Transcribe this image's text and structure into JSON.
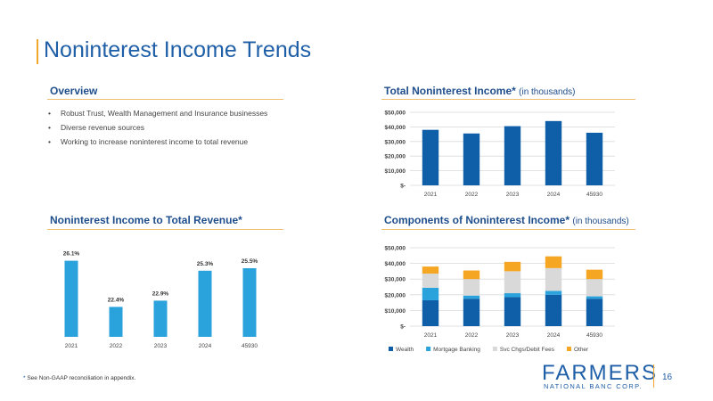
{
  "slide": {
    "title": "Noninterest Income Trends",
    "page_number": "16",
    "footnote_star": "*",
    "footnote": " See Non-GAAP reconciliation in appendix.",
    "logo_word": "FARMERS",
    "logo_sub": "NATIONAL BANC CORP."
  },
  "overview": {
    "heading": "Overview",
    "bullets": [
      "Robust Trust, Wealth Management and Insurance businesses",
      "Diverse revenue sources",
      "Working to increase noninterest income to total revenue"
    ]
  },
  "colors": {
    "blue": "#0e5fa8",
    "light_blue": "#2aa2dc",
    "gray": "#d9d9d9",
    "orange": "#f5a623",
    "accent": "#f0a830"
  },
  "chart_data": [
    {
      "id": "total",
      "type": "bar",
      "title": "Total Noninterest Income*",
      "subtitle": "(in thousands)",
      "categories": [
        "2021",
        "2022",
        "2023",
        "2024",
        "45930"
      ],
      "values": [
        38000,
        35500,
        40500,
        44000,
        36000
      ],
      "ylim": [
        0,
        50000
      ],
      "yticks": [
        0,
        10000,
        20000,
        30000,
        40000,
        50000
      ],
      "ytick_labels": [
        "$-",
        "$10,000",
        "$20,000",
        "$30,000",
        "$40,000",
        "$50,000"
      ],
      "grid": true
    },
    {
      "id": "ratio",
      "type": "bar",
      "title": "Noninterest Income to Total Revenue*",
      "categories": [
        "2021",
        "2022",
        "2023",
        "2024",
        "45930"
      ],
      "values": [
        26.1,
        22.4,
        22.9,
        25.3,
        25.5
      ],
      "data_labels": [
        "26.1%",
        "22.4%",
        "22.9%",
        "25.3%",
        "25.5%"
      ],
      "ylim": [
        20,
        27
      ],
      "grid": false
    },
    {
      "id": "components",
      "type": "bar",
      "stacked": true,
      "title": "Components of Noninterest Income*",
      "subtitle": "(in thousands)",
      "categories": [
        "2021",
        "2022",
        "2023",
        "2024",
        "45930"
      ],
      "series": [
        {
          "name": "Wealth",
          "values": [
            16500,
            17500,
            18500,
            20000,
            17500
          ]
        },
        {
          "name": "Mortgage Banking",
          "values": [
            8000,
            2000,
            2500,
            2500,
            1500
          ]
        },
        {
          "name": "Svc Chgs/Debit Fees",
          "values": [
            9000,
            10500,
            14000,
            14500,
            11000
          ]
        },
        {
          "name": "Other",
          "values": [
            4500,
            5500,
            6000,
            7500,
            6000
          ]
        }
      ],
      "ylim": [
        0,
        50000
      ],
      "yticks": [
        0,
        10000,
        20000,
        30000,
        40000,
        50000
      ],
      "ytick_labels": [
        "$-",
        "$10,000",
        "$20,000",
        "$30,000",
        "$40,000",
        "$50,000"
      ],
      "legend": "bottom",
      "grid": true
    }
  ]
}
